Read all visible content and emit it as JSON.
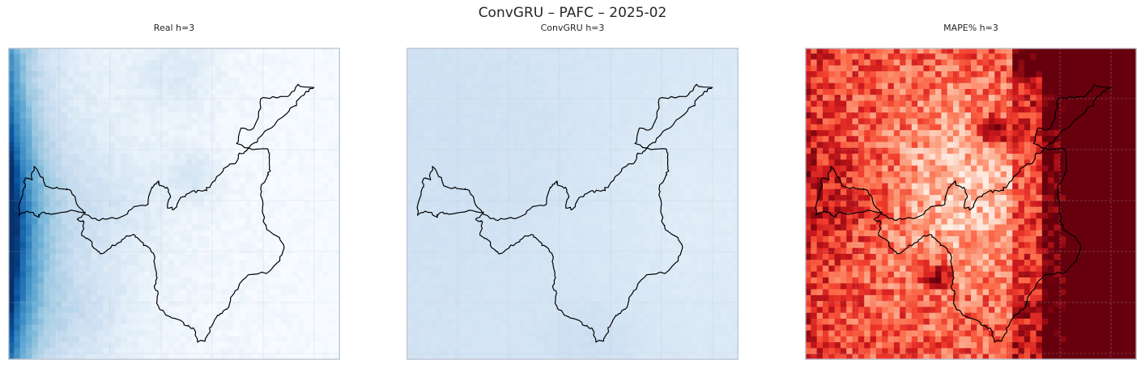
{
  "figure": {
    "title": "ConvGRU – PAFC – 2025-02"
  },
  "chart_data": [
    {
      "type": "heatmap",
      "title": "Real h=3",
      "colormap": "Blues",
      "grid": true,
      "cmap_colors": [
        "#f7fbff",
        "#deebf7",
        "#c6dbef",
        "#9ecae1",
        "#6baed6",
        "#4292c6",
        "#2171b5",
        "#08519c",
        "#08306b"
      ],
      "pattern": "high values along the western edge, light elsewhere"
    },
    {
      "type": "heatmap",
      "title": "ConvGRU h=3",
      "colormap": "Blues",
      "grid": true,
      "cmap_colors": [
        "#f7fbff",
        "#deebf7",
        "#c6dbef",
        "#9ecae1",
        "#6baed6",
        "#4292c6",
        "#2171b5",
        "#08519c",
        "#08306b"
      ],
      "pattern": "nearly uniform light blue"
    },
    {
      "type": "heatmap",
      "title": "MAPE% h=3",
      "colormap": "Reds",
      "grid": true,
      "cmap_colors": [
        "#fff5f0",
        "#fee0d2",
        "#fcbba1",
        "#fc9272",
        "#fb6a4a",
        "#ef3b2c",
        "#cb181d",
        "#a50f15",
        "#67000d"
      ],
      "pattern": "saturated dark red on the eastern third, medium reds on the west, pale in the center"
    }
  ],
  "colors": {
    "boundary": "#000000",
    "frame": "#c3cbd6",
    "grid": "#b0b8c4"
  }
}
